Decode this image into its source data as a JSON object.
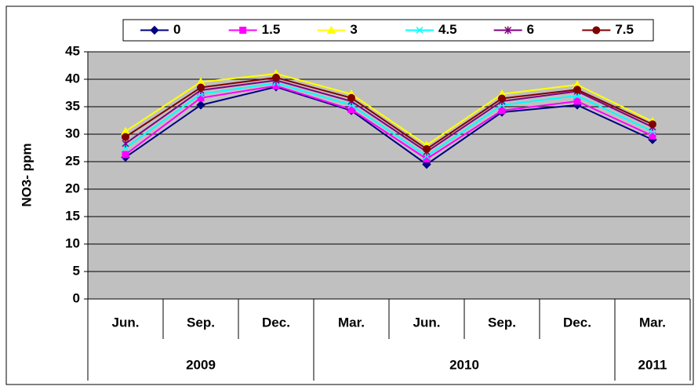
{
  "chart_data": {
    "type": "line",
    "y_label": "NO3- ppm",
    "categories": [
      "Jun.",
      "Sep.",
      "Dec.",
      "Mar.",
      "Jun.",
      "Sep.",
      "Dec.",
      "Mar."
    ],
    "x_groups": [
      {
        "label": "2009",
        "count": 3
      },
      {
        "label": "2010",
        "count": 4
      },
      {
        "label": "2011",
        "count": 1
      }
    ],
    "series": [
      {
        "name": "0",
        "color": "#000080",
        "marker": "diamond",
        "values": [
          25.8,
          35.3,
          38.6,
          34.3,
          24.5,
          34.0,
          35.3,
          29.0
        ]
      },
      {
        "name": "1.5",
        "color": "#ff00ff",
        "marker": "square",
        "values": [
          26.3,
          36.6,
          38.8,
          34.5,
          25.5,
          34.3,
          36.0,
          29.7
        ]
      },
      {
        "name": "3",
        "color": "#ffff00",
        "marker": "triangle",
        "values": [
          30.5,
          39.5,
          41.0,
          37.3,
          28.0,
          37.3,
          39.0,
          32.3
        ]
      },
      {
        "name": "4.5",
        "color": "#00ffff",
        "marker": "x",
        "values": [
          27.5,
          37.3,
          39.3,
          35.3,
          26.0,
          35.3,
          37.0,
          30.5
        ]
      },
      {
        "name": "6",
        "color": "#800080",
        "marker": "star",
        "values": [
          28.3,
          38.0,
          39.8,
          36.0,
          26.8,
          36.0,
          37.8,
          31.3
        ]
      },
      {
        "name": "7.5",
        "color": "#800000",
        "marker": "circle",
        "values": [
          29.5,
          38.5,
          40.3,
          36.6,
          27.3,
          36.5,
          38.1,
          31.8
        ]
      }
    ],
    "ylim": [
      0,
      45
    ],
    "yticks": [
      0,
      5,
      10,
      15,
      20,
      25,
      30,
      35,
      40,
      45
    ],
    "grid": true,
    "plot_background": "#c0c0c0",
    "legend": "top"
  }
}
